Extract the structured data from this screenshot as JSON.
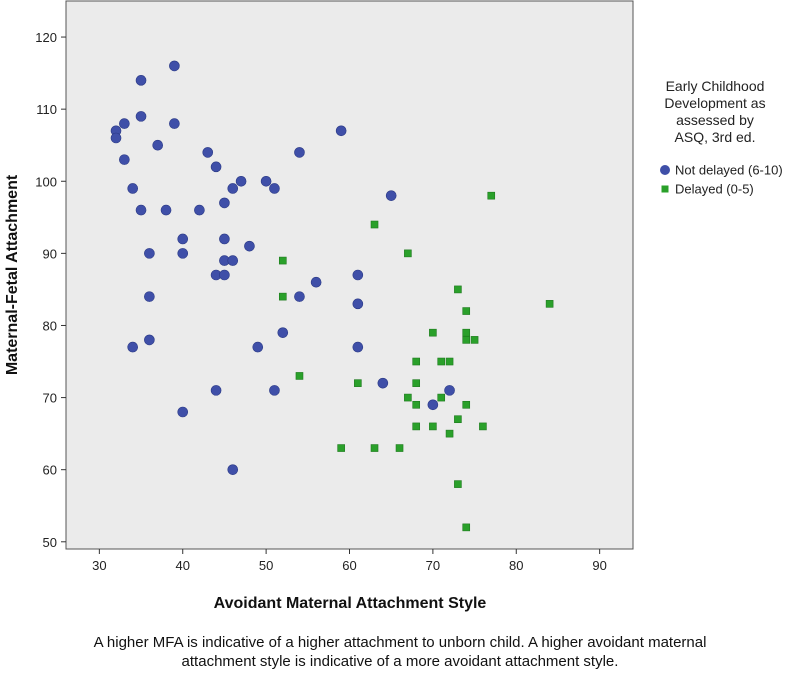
{
  "chart_data": {
    "type": "scatter",
    "xlabel": "Avoidant Maternal Attachment Style",
    "ylabel": "Maternal-Fetal Attachment",
    "xlim": [
      26,
      94
    ],
    "ylim": [
      49,
      125
    ],
    "xticks": [
      30,
      40,
      50,
      60,
      70,
      80,
      90
    ],
    "yticks": [
      50,
      60,
      70,
      80,
      90,
      100,
      110,
      120
    ],
    "grid": false,
    "legend_position": "right",
    "legend_title": [
      "Early Childhood",
      "Development as",
      "assessed by",
      "ASQ, 3rd ed."
    ],
    "series": [
      {
        "name": "Not delayed (6-10)",
        "marker": "circle",
        "color": "#3f4fa8",
        "points": [
          [
            39,
            116
          ],
          [
            35,
            114
          ],
          [
            35,
            109
          ],
          [
            33,
            108
          ],
          [
            39,
            108
          ],
          [
            32,
            107
          ],
          [
            32,
            106
          ],
          [
            37,
            105
          ],
          [
            33,
            103
          ],
          [
            43,
            104
          ],
          [
            44,
            102
          ],
          [
            54,
            104
          ],
          [
            59,
            107
          ],
          [
            34,
            99
          ],
          [
            35,
            96
          ],
          [
            38,
            96
          ],
          [
            42,
            96
          ],
          [
            45,
            97
          ],
          [
            46,
            99
          ],
          [
            47,
            100
          ],
          [
            50,
            100
          ],
          [
            51,
            99
          ],
          [
            65,
            98
          ],
          [
            40,
            92
          ],
          [
            36,
            90
          ],
          [
            40,
            90
          ],
          [
            45,
            92
          ],
          [
            45,
            89
          ],
          [
            46,
            89
          ],
          [
            48,
            91
          ],
          [
            44,
            87
          ],
          [
            45,
            87
          ],
          [
            61,
            87
          ],
          [
            56,
            86
          ],
          [
            36,
            84
          ],
          [
            54,
            84
          ],
          [
            61,
            83
          ],
          [
            52,
            79
          ],
          [
            36,
            78
          ],
          [
            34,
            77
          ],
          [
            49,
            77
          ],
          [
            61,
            77
          ],
          [
            64,
            72
          ],
          [
            44,
            71
          ],
          [
            51,
            71
          ],
          [
            72,
            71
          ],
          [
            70,
            69
          ],
          [
            40,
            68
          ],
          [
            46,
            60
          ]
        ]
      },
      {
        "name": "Delayed (0-5)",
        "marker": "square",
        "color": "#2aa02a",
        "points": [
          [
            77,
            98
          ],
          [
            63,
            94
          ],
          [
            67,
            90
          ],
          [
            52,
            89
          ],
          [
            52,
            84
          ],
          [
            73,
            85
          ],
          [
            84,
            83
          ],
          [
            74,
            82
          ],
          [
            70,
            79
          ],
          [
            74,
            79
          ],
          [
            74,
            78
          ],
          [
            75,
            78
          ],
          [
            68,
            75
          ],
          [
            71,
            75
          ],
          [
            72,
            75
          ],
          [
            54,
            73
          ],
          [
            61,
            72
          ],
          [
            68,
            72
          ],
          [
            67,
            70
          ],
          [
            71,
            70
          ],
          [
            68,
            69
          ],
          [
            74,
            69
          ],
          [
            73,
            67
          ],
          [
            68,
            66
          ],
          [
            70,
            66
          ],
          [
            76,
            66
          ],
          [
            72,
            65
          ],
          [
            59,
            63
          ],
          [
            63,
            63
          ],
          [
            66,
            63
          ],
          [
            73,
            58
          ],
          [
            74,
            52
          ]
        ]
      }
    ]
  },
  "caption": {
    "line1": "A higher MFA is indicative of a higher attachment to unborn child.  A higher avoidant maternal",
    "line2": "attachment style is indicative of a more avoidant attachment style."
  }
}
